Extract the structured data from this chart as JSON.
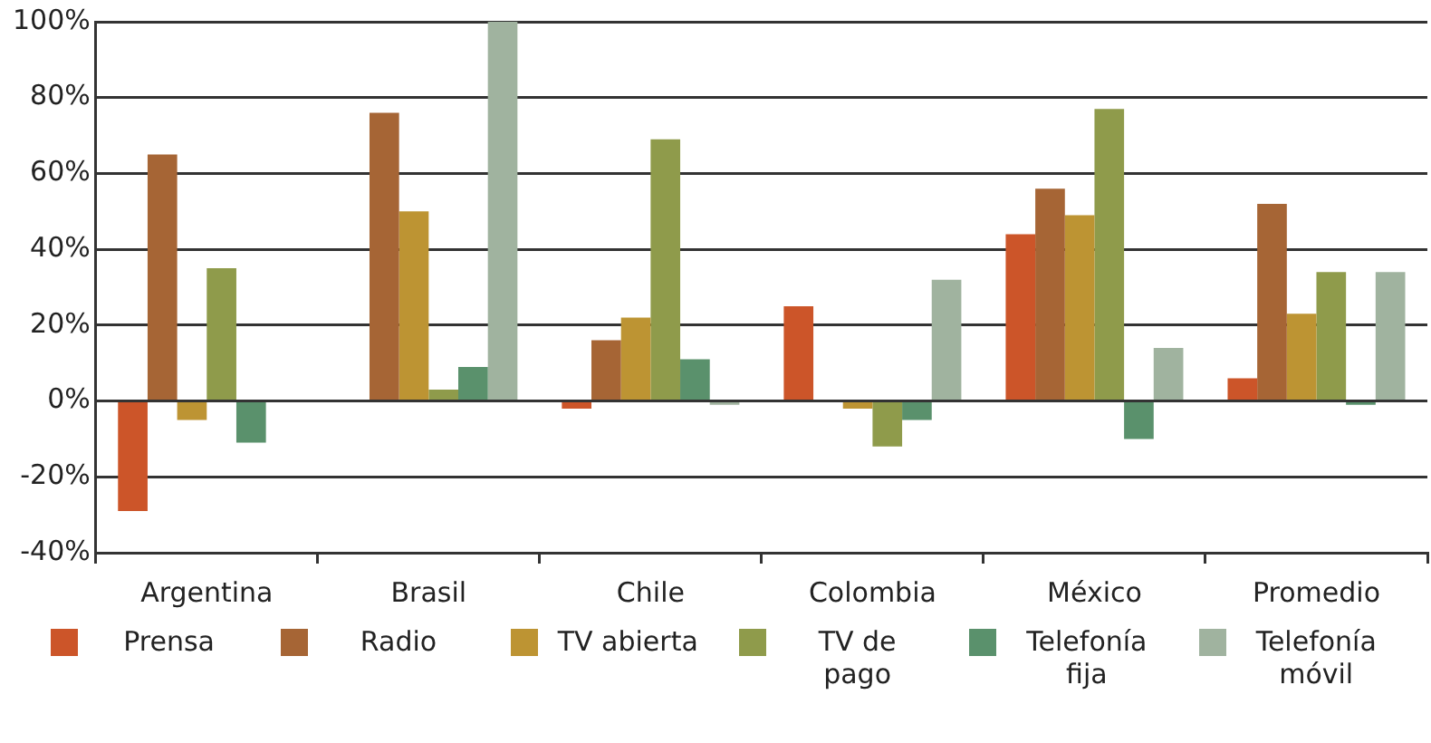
{
  "chart_data": {
    "type": "bar",
    "categories": [
      "Argentina",
      "Brasil",
      "Chile",
      "Colombia",
      "México",
      "Promedio"
    ],
    "series": [
      {
        "name": "Prensa",
        "color": "#cc5529",
        "values": [
          -29,
          null,
          -2,
          25,
          44,
          6
        ]
      },
      {
        "name": "Radio",
        "color": "#a66535",
        "values": [
          65,
          76,
          16,
          null,
          56,
          52
        ]
      },
      {
        "name": "TV abierta",
        "color": "#bd9433",
        "values": [
          -5,
          50,
          22,
          -2,
          49,
          23
        ]
      },
      {
        "name": "TV de pago",
        "color": "#8f9b4b",
        "values": [
          35,
          3,
          69,
          -12,
          77,
          34
        ]
      },
      {
        "name": "Telefonía fija",
        "color": "#5a916c",
        "values": [
          -11,
          9,
          11,
          -5,
          -10,
          -1
        ]
      },
      {
        "name": "Telefonía móvil",
        "color": "#a0b39f",
        "values": [
          null,
          100,
          -1,
          32,
          14,
          34
        ]
      }
    ],
    "ylim": [
      -40,
      100
    ],
    "yticks": [
      {
        "value": -40,
        "label": "-40%"
      },
      {
        "value": -20,
        "label": "-20%"
      },
      {
        "value": 0,
        "label": "0%"
      },
      {
        "value": 20,
        "label": "20%"
      },
      {
        "value": 40,
        "label": "40%"
      },
      {
        "value": 60,
        "label": "60%"
      },
      {
        "value": 80,
        "label": "80%"
      },
      {
        "value": 100,
        "label": "100%"
      }
    ],
    "grid": "y",
    "legend": "bottom"
  }
}
